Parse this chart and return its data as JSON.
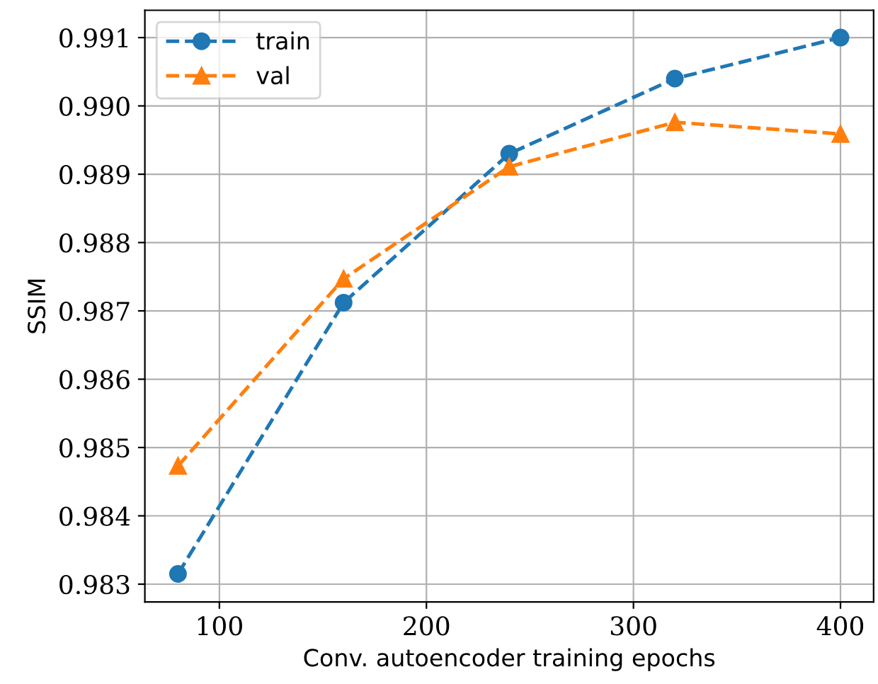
{
  "chart_data": {
    "type": "line",
    "xlabel": "Conv. autoencoder training epochs",
    "ylabel": "SSIM",
    "x": [
      80,
      160,
      240,
      320,
      400
    ],
    "series": [
      {
        "name": "train",
        "color": "#1f77b4",
        "marker": "circle",
        "line_style": "dashed",
        "values": [
          0.98315,
          0.98712,
          0.9893,
          0.9904,
          0.991
        ]
      },
      {
        "name": "val",
        "color": "#ff7f0e",
        "marker": "triangle",
        "line_style": "dashed",
        "values": [
          0.98473,
          0.98747,
          0.98911,
          0.98976,
          0.98959
        ]
      }
    ],
    "xlim": [
      64,
      416
    ],
    "xticks": [
      100,
      200,
      300,
      400
    ],
    "ylim": [
      0.98274,
      0.9914
    ],
    "yticks": [
      {
        "value": 0.983,
        "label": "0.983"
      },
      {
        "value": 0.984,
        "label": "0.984"
      },
      {
        "value": 0.985,
        "label": "0.985"
      },
      {
        "value": 0.986,
        "label": "0.986"
      },
      {
        "value": 0.987,
        "label": "0.987"
      },
      {
        "value": 0.988,
        "label": "0.988"
      },
      {
        "value": 0.989,
        "label": "0.989"
      },
      {
        "value": 0.99,
        "label": "0.990"
      },
      {
        "value": 0.991,
        "label": "0.991"
      }
    ],
    "grid": true,
    "legend": "top left"
  }
}
